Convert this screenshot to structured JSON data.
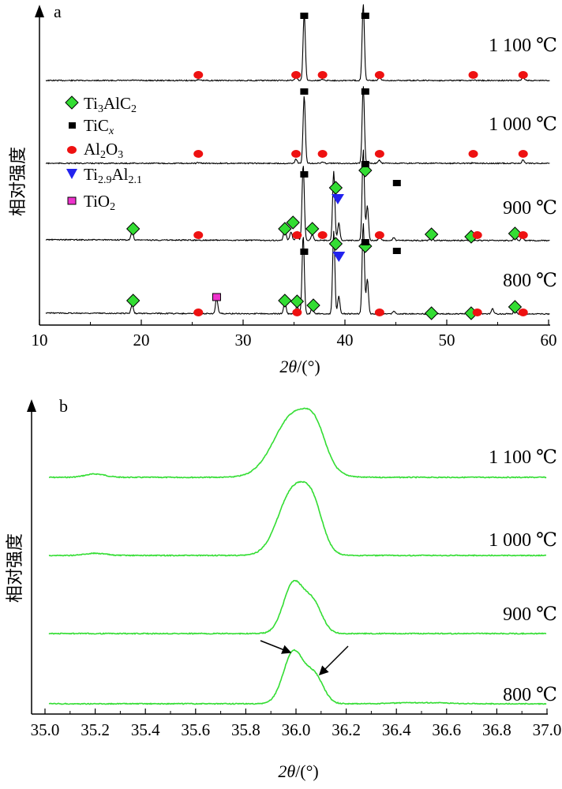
{
  "chart_data": [
    {
      "panel_label": "a",
      "type": "line",
      "xlabel_main": "2θ",
      "xlabel_unit": "/(°)",
      "ylabel": "相对强度",
      "xlim": [
        10,
        60
      ],
      "xticks": [
        "10",
        "20",
        "30",
        "40",
        "50",
        "60"
      ],
      "legend": [
        {
          "label": "Ti₃AlC₂",
          "marker": "diamond",
          "color": "#33dd33"
        },
        {
          "label": "TiCₓ",
          "marker": "square",
          "color": "#000000"
        },
        {
          "label": "Al₂O₃",
          "marker": "circle",
          "color": "#ee1111"
        },
        {
          "label": "Ti₂.₉Al₂.₁",
          "marker": "triangle",
          "color": "#2222ee"
        },
        {
          "label": "TiO₂",
          "marker": "square-outline",
          "color": "#ee33cc"
        }
      ],
      "series": [
        {
          "name": "1 100 ℃",
          "peaks": [
            [
              19.2,
              0.005
            ],
            [
              25.6,
              0.01
            ],
            [
              35.2,
              0.06
            ],
            [
              36.0,
              1.0
            ],
            [
              37.8,
              0.02
            ],
            [
              41.8,
              1.15
            ],
            [
              43.4,
              0.05
            ],
            [
              52.6,
              0.01
            ],
            [
              57.5,
              0.05
            ]
          ],
          "markers": {
            "square": [
              36.0,
              42.0
            ],
            "circle": [
              25.6,
              35.2,
              37.8,
              43.4,
              52.6,
              57.5
            ]
          }
        },
        {
          "name": "1 000 ℃",
          "peaks": [
            [
              19.2,
              0.005
            ],
            [
              25.6,
              0.01
            ],
            [
              35.2,
              0.06
            ],
            [
              36.0,
              1.0
            ],
            [
              37.8,
              0.02
            ],
            [
              41.8,
              1.15
            ],
            [
              43.4,
              0.05
            ],
            [
              52.6,
              0.01
            ],
            [
              57.5,
              0.05
            ]
          ],
          "markers": {
            "square": [
              36.0,
              42.0
            ],
            "circle": [
              25.6,
              35.2,
              37.8,
              43.4,
              52.6,
              57.5
            ]
          }
        },
        {
          "name": "900 ℃",
          "peaks": [
            [
              19.1,
              0.1
            ],
            [
              34.1,
              0.15
            ],
            [
              34.7,
              0.1
            ],
            [
              35.3,
              0.1
            ],
            [
              35.9,
              0.88
            ],
            [
              36.8,
              0.07
            ],
            [
              38.9,
              0.8
            ],
            [
              39.4,
              0.2
            ],
            [
              41.8,
              1.05
            ],
            [
              42.2,
              0.4
            ],
            [
              43.4,
              0.04
            ],
            [
              44.8,
              0.03
            ],
            [
              48.5,
              0.05
            ],
            [
              52.4,
              0.04
            ],
            [
              56.7,
              0.06
            ],
            [
              57.4,
              0.04
            ]
          ],
          "markers": {
            "diamond": [
              19.2,
              34.1,
              34.9,
              36.8,
              39.1,
              42.0,
              48.5,
              52.4,
              56.7
            ],
            "square": [
              36.0,
              42.0,
              45.1
            ],
            "circle": [
              25.6,
              35.3,
              37.8,
              43.4,
              53.0,
              57.5
            ],
            "triangle": [
              39.3
            ]
          }
        },
        {
          "name": "800 ℃",
          "peaks": [
            [
              19.1,
              0.1
            ],
            [
              25.6,
              0.02
            ],
            [
              27.4,
              0.18
            ],
            [
              34.1,
              0.15
            ],
            [
              35.3,
              0.1
            ],
            [
              35.9,
              0.9
            ],
            [
              36.8,
              0.08
            ],
            [
              38.9,
              0.95
            ],
            [
              39.4,
              0.2
            ],
            [
              41.8,
              1.05
            ],
            [
              42.2,
              0.4
            ],
            [
              43.4,
              0.03
            ],
            [
              44.8,
              0.03
            ],
            [
              48.5,
              0.06
            ],
            [
              52.4,
              0.05
            ],
            [
              54.5,
              0.06
            ],
            [
              56.7,
              0.07
            ],
            [
              57.4,
              0.04
            ]
          ],
          "markers": {
            "diamond": [
              19.2,
              34.1,
              35.3,
              36.9,
              39.1,
              42.0,
              48.5,
              52.4,
              56.7
            ],
            "square": [
              36.0,
              42.0,
              45.1
            ],
            "circle": [
              25.6,
              35.3,
              43.4,
              53.0,
              57.5
            ],
            "triangle": [
              39.4
            ],
            "square-outline": [
              27.4
            ]
          }
        }
      ]
    },
    {
      "panel_label": "b",
      "type": "line",
      "xlabel_main": "2θ",
      "xlabel_unit": "/(°)",
      "ylabel": "相对强度",
      "xlim": [
        35.0,
        37.0
      ],
      "xticks": [
        "35.0",
        "35.2",
        "35.4",
        "35.6",
        "35.8",
        "36.0",
        "36.2",
        "36.4",
        "36.6",
        "36.8",
        "37.0"
      ],
      "line_color": "#33dd33",
      "series": [
        {
          "name": "1 100 ℃",
          "peaks": [
            [
              35.2,
              0.05,
              0.04
            ],
            [
              35.995,
              0.95,
              0.08
            ],
            [
              36.08,
              0.35,
              0.04
            ]
          ]
        },
        {
          "name": "1 000 ℃",
          "peaks": [
            [
              35.2,
              0.03,
              0.04
            ],
            [
              35.99,
              0.9,
              0.06
            ],
            [
              36.07,
              0.48,
              0.04
            ]
          ]
        },
        {
          "name": "900 ℃",
          "peaks": [
            [
              35.99,
              0.8,
              0.04
            ],
            [
              36.07,
              0.45,
              0.035
            ]
          ]
        },
        {
          "name": "800 ℃",
          "peaks": [
            [
              35.99,
              0.88,
              0.04
            ],
            [
              36.075,
              0.45,
              0.035
            ],
            [
              36.5,
              0.02,
              0.1
            ]
          ]
        }
      ]
    }
  ]
}
